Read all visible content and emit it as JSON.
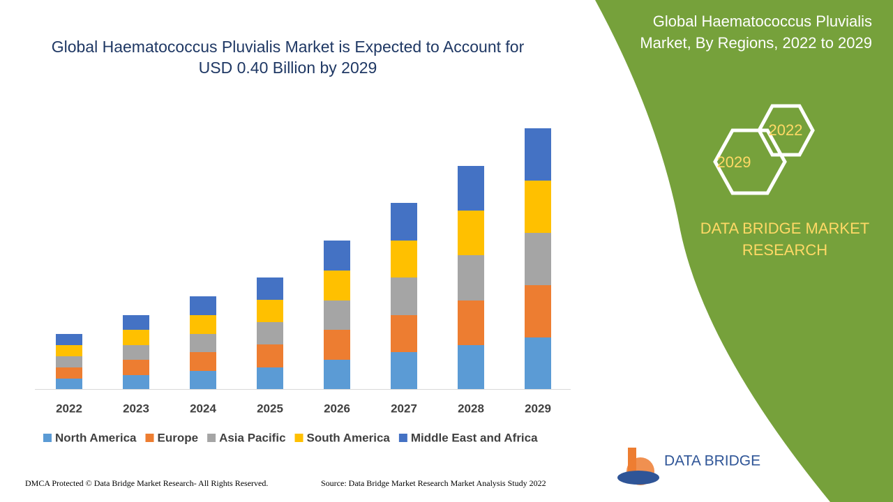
{
  "chart_data": {
    "type": "stacked-bar",
    "title": "Global Haematococcus Pluvialis Market is Expected to Account for USD 0.40 Billion by 2029",
    "categories": [
      "2022",
      "2023",
      "2024",
      "2025",
      "2026",
      "2027",
      "2028",
      "2029"
    ],
    "series": [
      {
        "name": "North America",
        "color": "#5b9bd5",
        "values": [
          15,
          20,
          26,
          31,
          42,
          53,
          63,
          74
        ]
      },
      {
        "name": "Europe",
        "color": "#ed7d31",
        "values": [
          16,
          22,
          27,
          33,
          43,
          53,
          64,
          75
        ]
      },
      {
        "name": "Asia Pacific",
        "color": "#a5a5a5",
        "values": [
          16,
          21,
          26,
          32,
          42,
          54,
          65,
          75
        ]
      },
      {
        "name": "South America",
        "color": "#ffc000",
        "values": [
          16,
          22,
          27,
          32,
          43,
          53,
          64,
          75
        ]
      },
      {
        "name": "Middle East and Africa",
        "color": "#4472c4",
        "values": [
          16,
          21,
          27,
          32,
          43,
          54,
          64,
          75
        ]
      }
    ],
    "legend": "bottom"
  },
  "panel": {
    "title": "Global Haematococcus Pluvialis Market, By Regions, 2022 to 2029",
    "hex_top": "2022",
    "hex_bottom": "2029",
    "brand": "DATA BRIDGE MARKET RESEARCH"
  },
  "logo": {
    "text": "DATA BRIDGE"
  },
  "footer": {
    "left": "DMCA Protected © Data Bridge Market Research- All Rights Reserved.",
    "right": "Source: Data Bridge Market Research Market Analysis Study 2022"
  }
}
